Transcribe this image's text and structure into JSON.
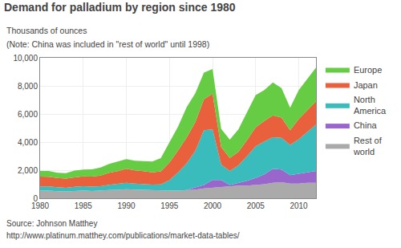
{
  "chart_data": {
    "type": "area",
    "stacked": true,
    "title": "Demand for palladium by region since 1980",
    "subtitle": [
      "Thousands of ounces",
      "(Note: China was included in \"rest of world\" until 1998)"
    ],
    "annotations": [
      "Source: Johnson Matthey",
      "http://www.platinum.matthey.com/publications/market-data-tables/"
    ],
    "x": [
      1980,
      1981,
      1982,
      1983,
      1984,
      1985,
      1986,
      1987,
      1988,
      1989,
      1990,
      1991,
      1992,
      1993,
      1994,
      1995,
      1996,
      1997,
      1998,
      1999,
      2000,
      2001,
      2002,
      2003,
      2004,
      2005,
      2006,
      2007,
      2008,
      2009,
      2010,
      2011,
      2012
    ],
    "series": [
      {
        "name": "Rest of\nworld",
        "color": "#aaaaaa",
        "values": [
          550,
          550,
          500,
          480,
          520,
          560,
          520,
          530,
          580,
          600,
          650,
          620,
          600,
          570,
          540,
          540,
          550,
          580,
          620,
          700,
          750,
          800,
          850,
          900,
          900,
          950,
          1000,
          1100,
          1150,
          1050,
          1050,
          1100,
          1100
        ]
      },
      {
        "name": "China",
        "color": "#9966cc",
        "values": [
          0,
          0,
          0,
          0,
          0,
          0,
          0,
          0,
          0,
          0,
          0,
          0,
          0,
          0,
          0,
          0,
          0,
          0,
          150,
          250,
          550,
          500,
          100,
          200,
          350,
          500,
          700,
          1000,
          900,
          600,
          700,
          750,
          850
        ]
      },
      {
        "name": "North\nAmerica",
        "color": "#3bbcbc",
        "values": [
          300,
          300,
          280,
          270,
          290,
          300,
          310,
          330,
          380,
          430,
          450,
          420,
          410,
          400,
          450,
          750,
          1300,
          1900,
          2600,
          3900,
          3600,
          1100,
          1000,
          1250,
          1750,
          2250,
          2350,
          2250,
          2250,
          2150,
          2450,
          2850,
          3300
        ]
      },
      {
        "name": "Japan",
        "color": "#e8613c",
        "values": [
          700,
          680,
          660,
          650,
          680,
          700,
          710,
          760,
          860,
          900,
          1000,
          950,
          920,
          880,
          920,
          1250,
          1550,
          1850,
          2050,
          2200,
          2550,
          1250,
          920,
          950,
          1150,
          1350,
          1450,
          1550,
          1450,
          1050,
          1450,
          1550,
          1650
        ]
      },
      {
        "name": "Europe",
        "color": "#66cc44",
        "values": [
          400,
          420,
          380,
          390,
          480,
          480,
          520,
          570,
          620,
          660,
          680,
          680,
          720,
          760,
          950,
          1400,
          1700,
          2150,
          2050,
          1900,
          1750,
          1300,
          1300,
          1600,
          2000,
          2300,
          2200,
          2350,
          2100,
          1600,
          2050,
          2250,
          2400
        ]
      }
    ],
    "xlim": [
      1980,
      2012
    ],
    "xticks": [
      1980,
      1985,
      1990,
      1995,
      2000,
      2005,
      2010
    ],
    "ylim": [
      0,
      10000
    ],
    "yticks": [
      0,
      {
        "value": 2000,
        "label": "2,000"
      },
      {
        "value": 4000,
        "label": "4,000"
      },
      {
        "value": 6000,
        "label": "6,000"
      },
      {
        "value": 8000,
        "label": "8,000"
      },
      {
        "value": 10000,
        "label": "10,000"
      }
    ],
    "grid": true,
    "legend": "right"
  }
}
